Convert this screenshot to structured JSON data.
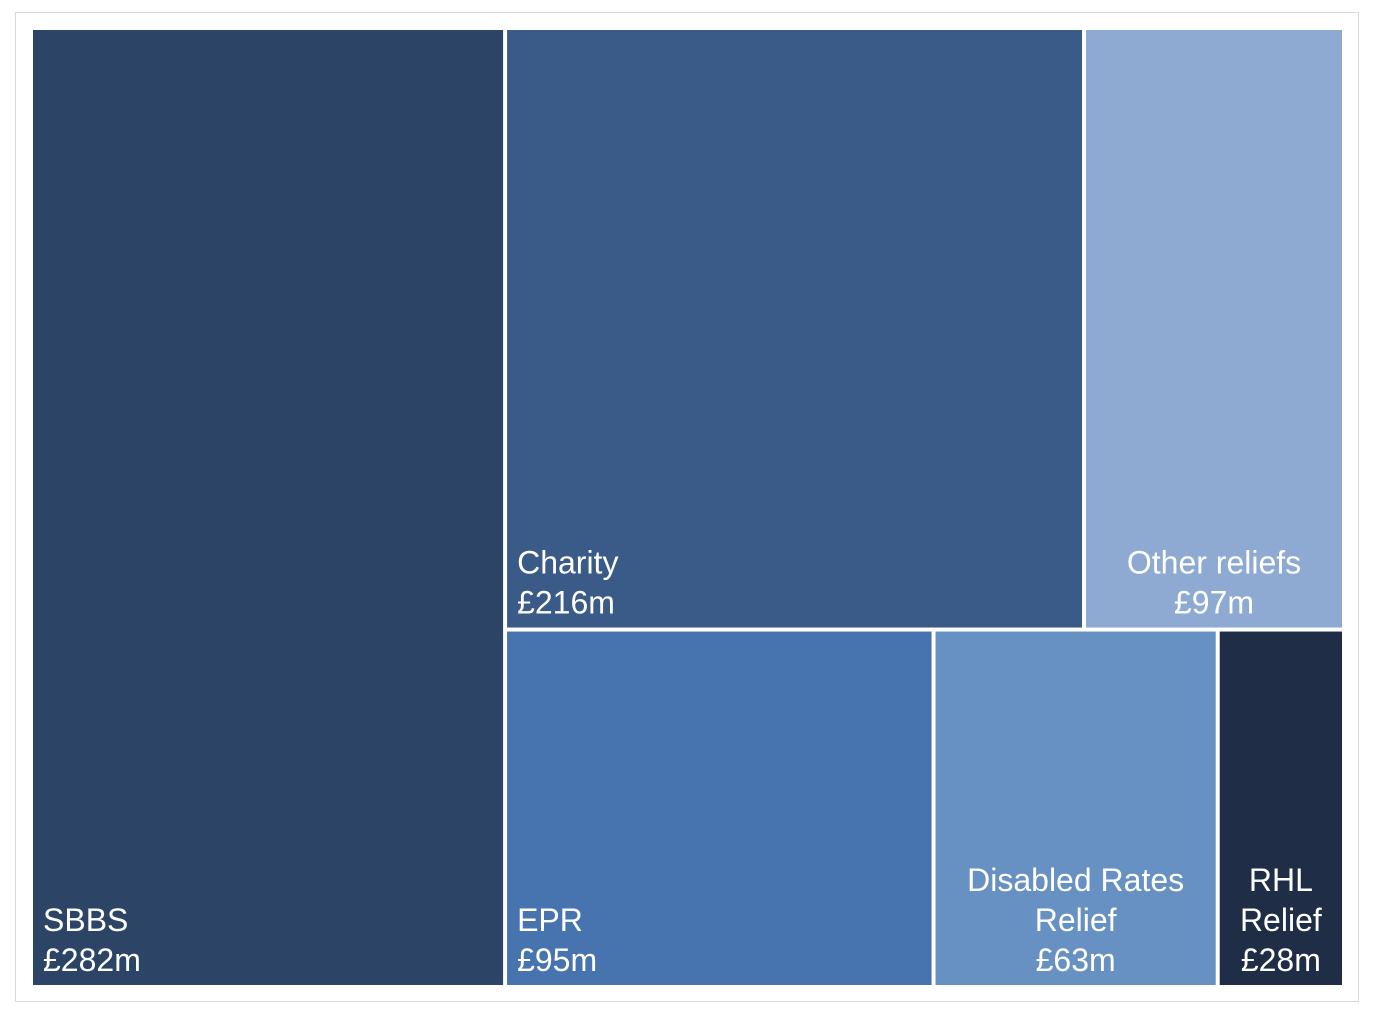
{
  "chart_data": {
    "type": "treemap",
    "title": "",
    "unit_prefix": "£",
    "unit_suffix": "m",
    "tiles": [
      {
        "label": "SBBS",
        "label_lines": [
          "SBBS"
        ],
        "value": 282,
        "value_text": "£282m",
        "color": "#2c4567",
        "text_color": "#ffffff",
        "align": "left"
      },
      {
        "label": "Charity",
        "label_lines": [
          "Charity"
        ],
        "value": 216,
        "value_text": "£216m",
        "color": "#3a5a87",
        "text_color": "#ffffff",
        "align": "left"
      },
      {
        "label": "Other reliefs",
        "label_lines": [
          "Other reliefs"
        ],
        "value": 97,
        "value_text": "£97m",
        "color": "#8eaad2",
        "text_color": "#111111",
        "align": "center"
      },
      {
        "label": "EPR",
        "label_lines": [
          "EPR"
        ],
        "value": 95,
        "value_text": "£95m",
        "color": "#4774ae",
        "text_color": "#ffffff",
        "align": "left"
      },
      {
        "label": "Disabled Rates Relief",
        "label_lines": [
          "Disabled Rates",
          "Relief"
        ],
        "value": 63,
        "value_text": "£63m",
        "color": "#6790c3",
        "text_color": "#111111",
        "align": "center"
      },
      {
        "label": "RHL Relief",
        "label_lines": [
          "RHL",
          "Relief"
        ],
        "value": 28,
        "value_text": "£28m",
        "color": "#1f2e46",
        "text_color": "#ffffff",
        "align": "center"
      }
    ]
  }
}
